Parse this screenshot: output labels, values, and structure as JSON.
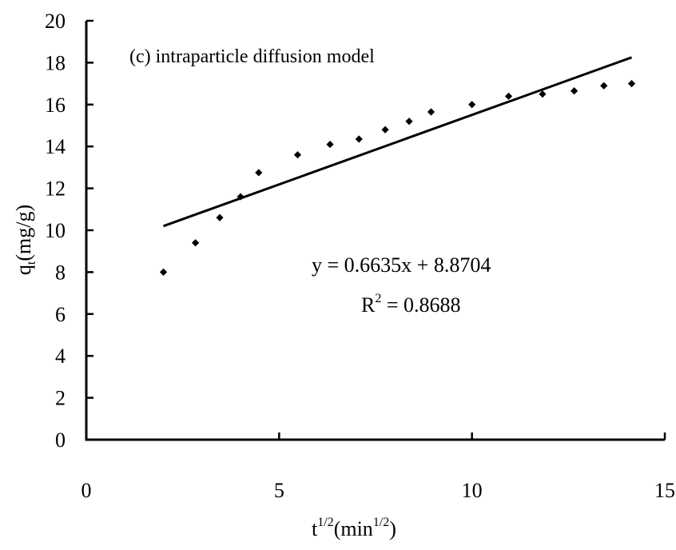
{
  "chart_data": {
    "type": "scatter",
    "title": "(c) intraparticle diffusion model",
    "xlabel": {
      "base": "t",
      "sup": "1/2",
      "unit_open": "(min",
      "unit_sup": "1/2",
      "unit_close": ")"
    },
    "ylabel": {
      "base": "q",
      "sub": "t",
      "unit": "(mg/g)"
    },
    "xlim": [
      0,
      15
    ],
    "ylim": [
      0,
      20
    ],
    "xticks": [
      0,
      5,
      10,
      15
    ],
    "yticks": [
      0,
      2,
      4,
      6,
      8,
      10,
      12,
      14,
      16,
      18,
      20
    ],
    "xtick_labels": [
      "0",
      "5",
      "10",
      "15"
    ],
    "ytick_labels": [
      "0",
      "2",
      "4",
      "6",
      "8",
      "10",
      "12",
      "14",
      "16",
      "18",
      "20"
    ],
    "grid": false,
    "points": [
      {
        "x": 2.0,
        "y": 8.0
      },
      {
        "x": 2.83,
        "y": 9.4
      },
      {
        "x": 3.46,
        "y": 10.6
      },
      {
        "x": 4.0,
        "y": 11.6
      },
      {
        "x": 4.47,
        "y": 12.75
      },
      {
        "x": 5.48,
        "y": 13.6
      },
      {
        "x": 6.32,
        "y": 14.1
      },
      {
        "x": 7.07,
        "y": 14.35
      },
      {
        "x": 7.75,
        "y": 14.8
      },
      {
        "x": 8.37,
        "y": 15.2
      },
      {
        "x": 8.94,
        "y": 15.65
      },
      {
        "x": 10.0,
        "y": 16.0
      },
      {
        "x": 10.95,
        "y": 16.4
      },
      {
        "x": 11.83,
        "y": 16.5
      },
      {
        "x": 12.65,
        "y": 16.65
      },
      {
        "x": 13.42,
        "y": 16.9
      },
      {
        "x": 14.14,
        "y": 17.0
      }
    ],
    "fit": {
      "slope": 0.6635,
      "intercept": 8.8704,
      "x_start": 2.0,
      "x_end": 14.14,
      "equation": "y = 0.6635x + 8.8704",
      "r2_label": "R",
      "r2_sup": "2",
      "r2_value": "  = 0.8688"
    },
    "colors": {
      "points": "#000000",
      "line": "#000000",
      "axes": "#000000"
    }
  }
}
